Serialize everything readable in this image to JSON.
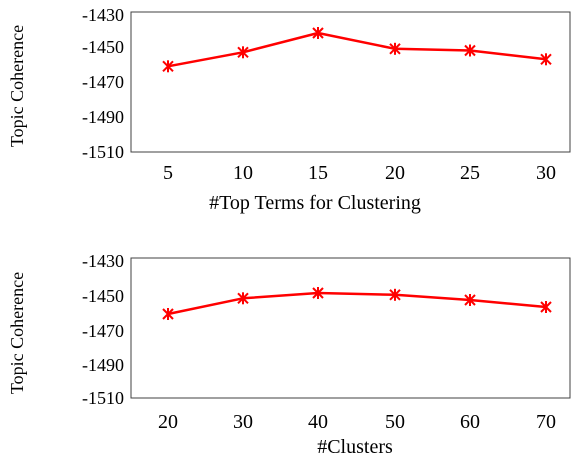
{
  "chart_data": [
    {
      "type": "line",
      "categories": [
        "5",
        "10",
        "15",
        "20",
        "25",
        "30"
      ],
      "series": [
        {
          "values": [
            -1461,
            -1453,
            -1442,
            -1451,
            -1452,
            -1457
          ]
        }
      ],
      "xlabel": "#Top Terms for Clustering",
      "ylabel": "Topic Coherence",
      "ylim": [
        -1510,
        -1430
      ],
      "yticks": [
        "-1430",
        "-1450",
        "-1470",
        "-1490",
        "-1510"
      ],
      "marker": "asterisk",
      "grid": false
    },
    {
      "type": "line",
      "categories": [
        "20",
        "30",
        "40",
        "50",
        "60",
        "70"
      ],
      "series": [
        {
          "values": [
            -1462,
            -1453,
            -1450,
            -1451,
            -1454,
            -1458
          ]
        }
      ],
      "xlabel": "#Clusters",
      "ylabel": "Topic Coherence",
      "ylim": [
        -1510,
        -1430
      ],
      "yticks": [
        "-1430",
        "-1450",
        "-1470",
        "-1490",
        "-1510"
      ],
      "marker": "asterisk",
      "grid": false
    }
  ],
  "colors": {
    "line": "#ff0000",
    "axis": "#404040"
  }
}
